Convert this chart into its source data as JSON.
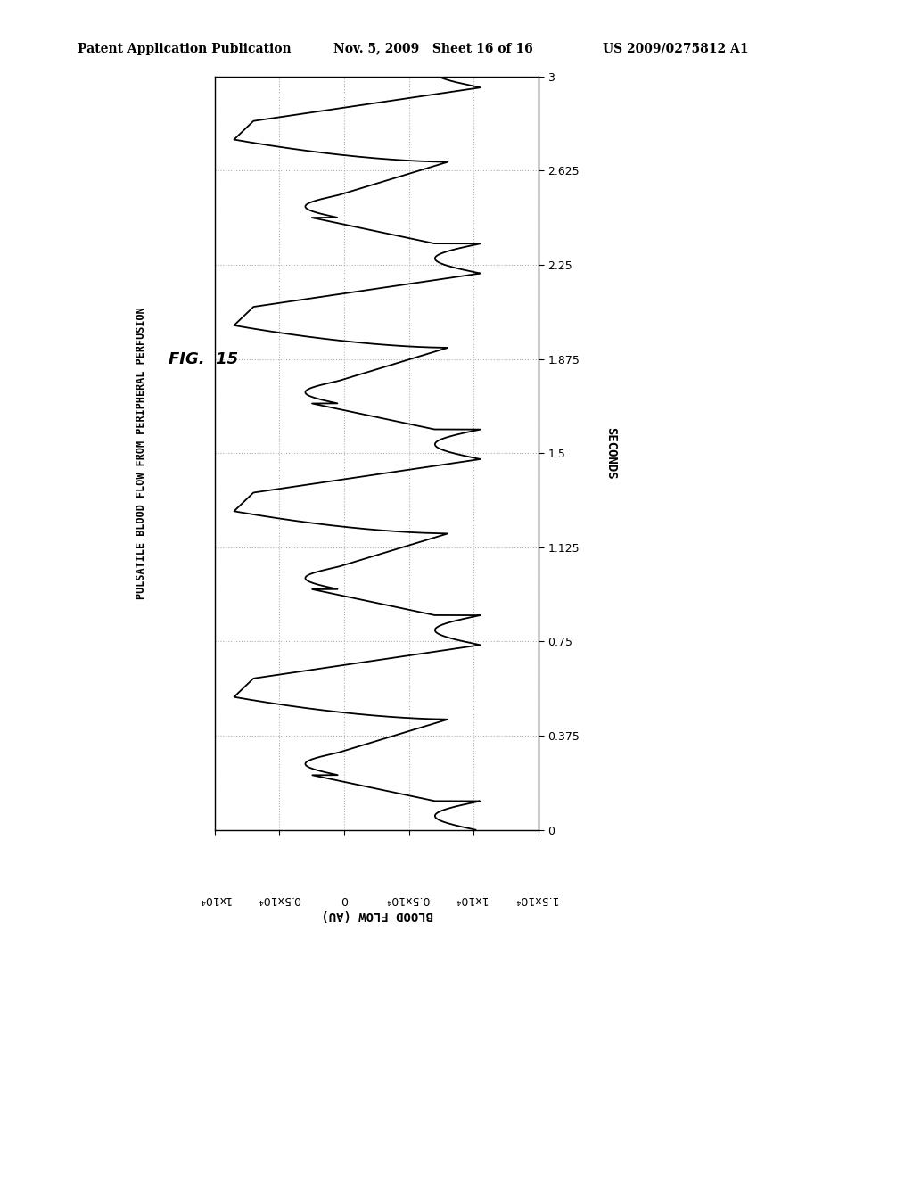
{
  "title": "FIG.  15",
  "subtitle": "PULSATILE BLOOD FLOW FROM PERIPHERAL PERFUSION",
  "right_ylabel": "SECONDS",
  "bottom_xlabel": "BLOOD FLOW (AU)",
  "header_left": "Patent Application Publication",
  "header_mid": "Nov. 5, 2009   Sheet 16 of 16",
  "header_right": "US 2009/0275812 A1",
  "time_min": 0.0,
  "time_max": 3.0,
  "flow_min": -15000,
  "flow_max": 10000,
  "time_ticks": [
    0,
    0.375,
    0.75,
    1.125,
    1.5,
    1.875,
    2.25,
    2.625,
    3.0
  ],
  "flow_ticks": [
    -15000,
    -10000,
    -5000,
    0,
    5000,
    10000
  ],
  "flow_tick_labels": [
    "-1.5x10⁴",
    "-1x10⁴",
    "-0.5x10⁴",
    "0",
    "0.5x10⁴",
    "1x10⁴"
  ],
  "background_color": "#ffffff",
  "line_color": "#000000",
  "grid_color": "#b0b0b0",
  "grid_style": ":"
}
